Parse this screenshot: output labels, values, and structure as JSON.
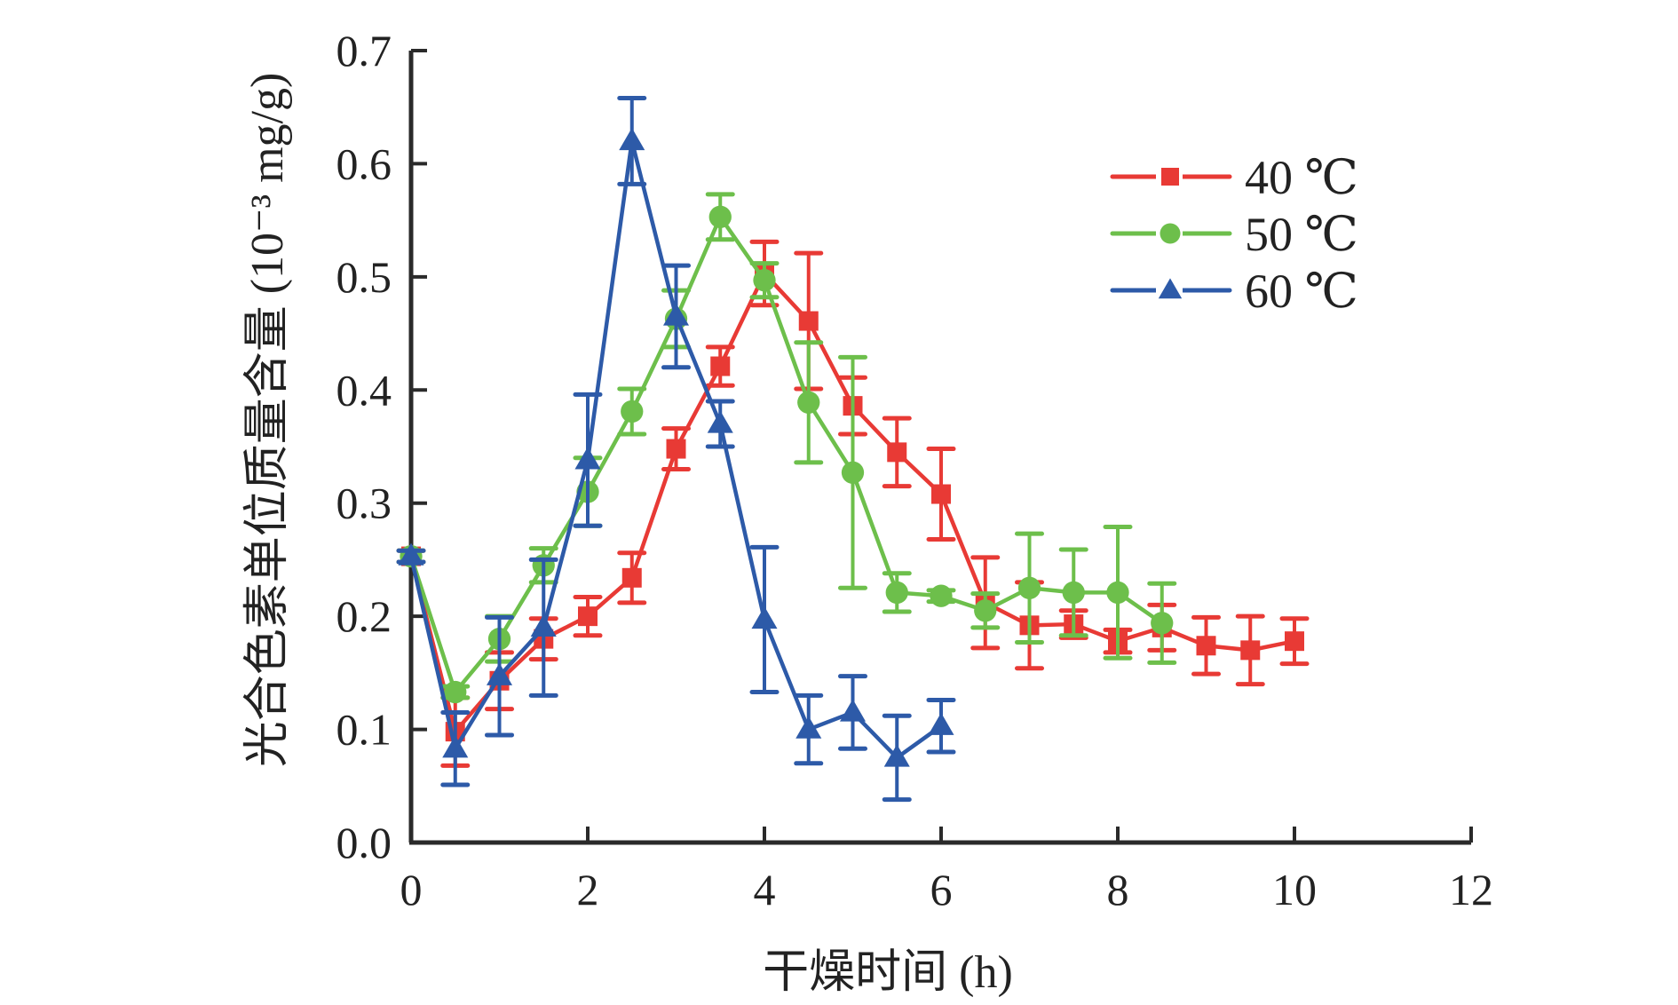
{
  "chart_data": {
    "type": "line",
    "title": "",
    "xlabel": "干燥时间 (h)",
    "ylabel": "光合色素单位质量含量 (10⁻³ mg/g)",
    "xlim": [
      0,
      12
    ],
    "ylim": [
      0,
      0.7
    ],
    "xticks": [
      0,
      2,
      4,
      6,
      8,
      10,
      12
    ],
    "yticks": [
      0.0,
      0.1,
      0.2,
      0.3,
      0.4,
      0.5,
      0.6,
      0.7
    ],
    "xtick_labels": [
      "0",
      "2",
      "4",
      "6",
      "8",
      "10",
      "12"
    ],
    "ytick_labels": [
      "0.0",
      "0.1",
      "0.2",
      "0.3",
      "0.4",
      "0.5",
      "0.6",
      "0.7"
    ],
    "grid": false,
    "legend_position": "top-right",
    "series": [
      {
        "name": "40 ℃",
        "color": "#e83a35",
        "marker": "square",
        "x": [
          0,
          0.5,
          1,
          1.5,
          2,
          2.5,
          3,
          3.5,
          4,
          4.5,
          5,
          5.5,
          6,
          6.5,
          7,
          7.5,
          8,
          8.5,
          9,
          9.5,
          10
        ],
        "values": [
          0.253,
          0.098,
          0.143,
          0.18,
          0.2,
          0.234,
          0.348,
          0.421,
          0.503,
          0.461,
          0.386,
          0.345,
          0.308,
          0.212,
          0.192,
          0.193,
          0.178,
          0.19,
          0.174,
          0.17,
          0.178
        ],
        "error": [
          0.005,
          0.03,
          0.025,
          0.018,
          0.017,
          0.022,
          0.018,
          0.017,
          0.028,
          0.06,
          0.025,
          0.03,
          0.04,
          0.04,
          0.038,
          0.012,
          0.01,
          0.02,
          0.025,
          0.03,
          0.02
        ]
      },
      {
        "name": "50 ℃",
        "color": "#6dbf4b",
        "marker": "circle",
        "x": [
          0,
          0.5,
          1,
          1.5,
          2,
          2.5,
          3,
          3.5,
          4,
          4.5,
          5,
          5.5,
          6,
          6.5,
          7,
          7.5,
          8,
          8.5
        ],
        "values": [
          0.253,
          0.133,
          0.18,
          0.245,
          0.31,
          0.381,
          0.463,
          0.553,
          0.497,
          0.389,
          0.327,
          0.221,
          0.218,
          0.205,
          0.225,
          0.221,
          0.221,
          0.194
        ],
        "error": [
          0.005,
          0.005,
          0.02,
          0.015,
          0.03,
          0.02,
          0.025,
          0.02,
          0.015,
          0.053,
          0.102,
          0.017,
          0.005,
          0.015,
          0.048,
          0.038,
          0.058,
          0.035
        ]
      },
      {
        "name": "60 ℃",
        "color": "#2d5aa8",
        "marker": "triangle",
        "x": [
          0,
          0.5,
          1,
          1.5,
          2,
          2.5,
          3,
          3.5,
          4,
          4.5,
          5,
          5.5,
          6
        ],
        "values": [
          0.253,
          0.083,
          0.147,
          0.19,
          0.338,
          0.62,
          0.465,
          0.37,
          0.197,
          0.1,
          0.115,
          0.075,
          0.103
        ],
        "error": [
          0.005,
          0.032,
          0.052,
          0.06,
          0.058,
          0.038,
          0.045,
          0.02,
          0.064,
          0.03,
          0.032,
          0.037,
          0.023
        ]
      }
    ]
  }
}
